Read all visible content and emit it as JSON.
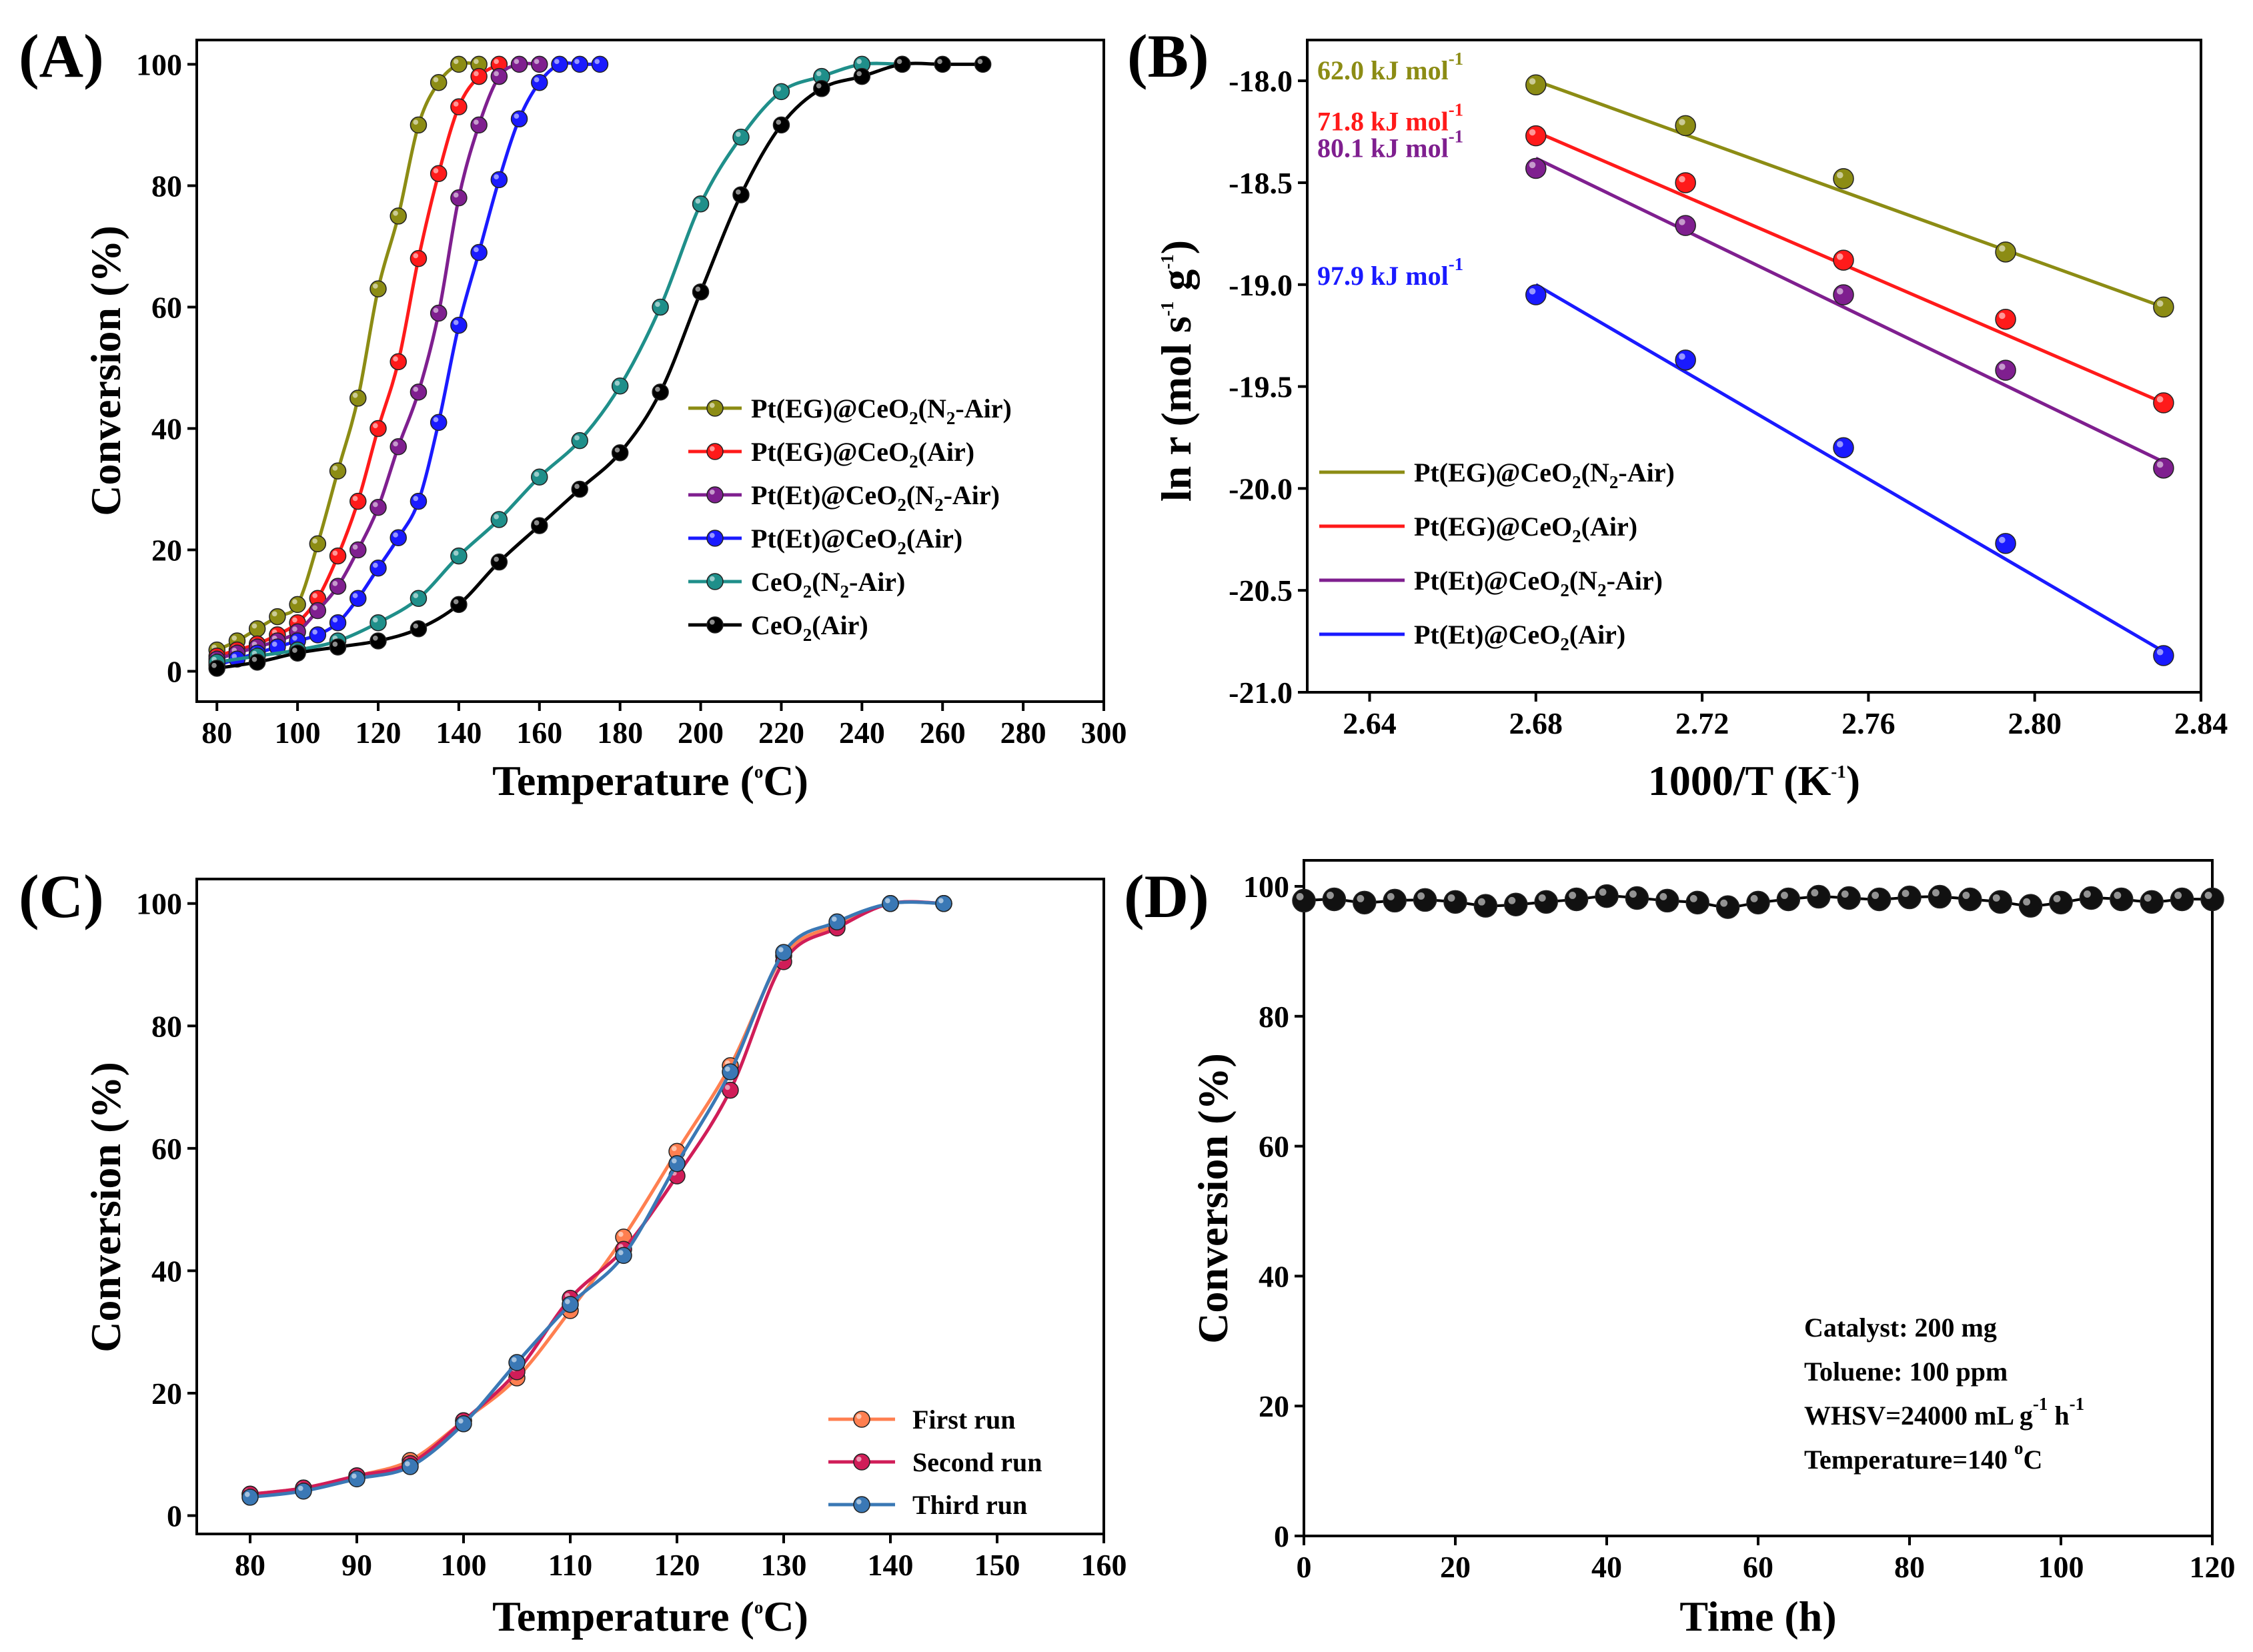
{
  "chart_data": [
    {
      "panel": "(A)",
      "type": "line",
      "xlabel": "Temperature",
      "xlabel_unit": "(oC)",
      "ylabel": "Conversion (%)",
      "xlim": [
        75,
        300
      ],
      "ylim": [
        -5,
        104
      ],
      "xticks": [
        80,
        100,
        120,
        140,
        160,
        180,
        200,
        220,
        240,
        260,
        280,
        300
      ],
      "yticks": [
        0,
        20,
        40,
        60,
        80,
        100
      ],
      "legend_position": "center-right",
      "series": [
        {
          "name": "Pt(EG)@CeO2(N2-Air)",
          "label_parts": [
            "Pt(EG)@CeO",
            "2",
            "(N",
            "2",
            "-Air)"
          ],
          "color": "#8c8c14",
          "x": [
            80,
            85,
            90,
            95,
            100,
            105,
            110,
            115,
            120,
            125,
            130,
            135,
            140,
            145
          ],
          "y": [
            3.5,
            5,
            7,
            9,
            11,
            21,
            33,
            45,
            63,
            75,
            90,
            97,
            100,
            100
          ]
        },
        {
          "name": "Pt(EG)@CeO2(Air)",
          "label_parts": [
            "Pt(EG)@CeO",
            "2",
            "(Air)"
          ],
          "color": "#ff1a1a",
          "x": [
            80,
            85,
            90,
            95,
            100,
            105,
            110,
            115,
            120,
            125,
            130,
            135,
            140,
            145,
            150
          ],
          "y": [
            2.5,
            3.5,
            4.5,
            6,
            8,
            12,
            19,
            28,
            40,
            51,
            68,
            82,
            93,
            98,
            100
          ]
        },
        {
          "name": "Pt(Et)@CeO2(N2-Air)",
          "label_parts": [
            "Pt(Et)@CeO",
            "2",
            "(N",
            "2",
            "-Air)"
          ],
          "color": "#7f1f8f",
          "x": [
            80,
            85,
            90,
            95,
            100,
            105,
            110,
            115,
            120,
            125,
            130,
            135,
            140,
            145,
            150,
            155,
            160
          ],
          "y": [
            2,
            3,
            4,
            5,
            6.5,
            10,
            14,
            20,
            27,
            37,
            46,
            59,
            78,
            90,
            98,
            100,
            100
          ]
        },
        {
          "name": "Pt(Et)@CeO2(Air)",
          "label_parts": [
            "Pt(Et)@CeO",
            "2",
            "(Air)"
          ],
          "color": "#1a1aff",
          "x": [
            80,
            85,
            90,
            95,
            100,
            105,
            110,
            115,
            120,
            125,
            130,
            135,
            140,
            145,
            150,
            155,
            160,
            165,
            170,
            175
          ],
          "y": [
            1,
            2,
            3,
            4,
            5,
            6,
            8,
            12,
            17,
            22,
            28,
            41,
            57,
            69,
            81,
            91,
            97,
            100,
            100,
            100
          ]
        },
        {
          "name": "CeO2(N2-Air)",
          "label_parts": [
            "CeO",
            "2",
            "(N",
            "2",
            "-Air)"
          ],
          "color": "#1f8f8a",
          "x": [
            80,
            90,
            100,
            110,
            120,
            130,
            140,
            150,
            160,
            170,
            180,
            190,
            200,
            210,
            220,
            230,
            240,
            250
          ],
          "y": [
            1.5,
            2.5,
            3.5,
            5,
            8,
            12,
            19,
            25,
            32,
            38,
            47,
            60,
            77,
            88,
            95.5,
            98,
            100,
            100
          ]
        },
        {
          "name": "CeO2(Air)",
          "label_parts": [
            "CeO",
            "2",
            "(Air)"
          ],
          "color": "#000000",
          "x": [
            80,
            90,
            100,
            110,
            120,
            130,
            140,
            150,
            160,
            170,
            180,
            190,
            200,
            210,
            220,
            230,
            240,
            250,
            260,
            270
          ],
          "y": [
            0.5,
            1.5,
            3,
            4,
            5,
            7,
            11,
            18,
            24,
            30,
            36,
            46,
            62.5,
            78.5,
            90,
            96,
            98,
            100,
            100,
            100
          ]
        }
      ]
    },
    {
      "panel": "(B)",
      "type": "scatter",
      "xlabel": "1000/T",
      "xlabel_unit": "(K-1)",
      "ylabel": "ln r (mol s-1 g-1)",
      "xlim": [
        2.625,
        2.84
      ],
      "ylim": [
        -21.0,
        -17.8
      ],
      "xticks": [
        2.64,
        2.68,
        2.72,
        2.76,
        2.8,
        2.84
      ],
      "yticks": [
        -18.0,
        -18.5,
        -19.0,
        -19.5,
        -20.0,
        -20.5,
        -21.0
      ],
      "legend_position": "bottom-left",
      "series": [
        {
          "name": "Pt(EG)@CeO2(N2-Air)",
          "label_parts": [
            "Pt(EG)@CeO",
            "2",
            "(N",
            "2",
            "-Air)"
          ],
          "color": "#8c8c14",
          "x": [
            2.68,
            2.716,
            2.754,
            2.793,
            2.831
          ],
          "y": [
            -18.02,
            -18.22,
            -18.48,
            -18.84,
            -19.11
          ],
          "fit": [
            [
              2.68,
              -18.0
            ],
            [
              2.831,
              -19.11
            ]
          ],
          "annotation": "62.0 kJ mol",
          "annotation_sup": "-1"
        },
        {
          "name": "Pt(EG)@CeO2(Air)",
          "label_parts": [
            "Pt(EG)@CeO",
            "2",
            "(Air)"
          ],
          "color": "#ff1a1a",
          "x": [
            2.68,
            2.716,
            2.754,
            2.793,
            2.831
          ],
          "y": [
            -18.27,
            -18.5,
            -18.88,
            -19.17,
            -19.58
          ],
          "fit": [
            [
              2.68,
              -18.25
            ],
            [
              2.831,
              -19.58
            ]
          ],
          "annotation": "71.8 kJ mol",
          "annotation_sup": "-1"
        },
        {
          "name": "Pt(Et)@CeO2(N2-Air)",
          "label_parts": [
            "Pt(Et)@CeO",
            "2",
            "(N",
            "2",
            "-Air)"
          ],
          "color": "#7f1f8f",
          "x": [
            2.68,
            2.716,
            2.754,
            2.793,
            2.831
          ],
          "y": [
            -18.43,
            -18.71,
            -19.05,
            -19.42,
            -19.9
          ],
          "fit": [
            [
              2.68,
              -18.38
            ],
            [
              2.831,
              -19.87
            ]
          ],
          "annotation": "80.1 kJ mol",
          "annotation_sup": "-1"
        },
        {
          "name": "Pt(Et)@CeO2(Air)",
          "label_parts": [
            "Pt(Et)@CeO",
            "2",
            "(Air)"
          ],
          "color": "#1a1aff",
          "x": [
            2.68,
            2.716,
            2.754,
            2.793,
            2.831
          ],
          "y": [
            -19.05,
            -19.37,
            -19.8,
            -20.27,
            -20.82
          ],
          "fit": [
            [
              2.68,
              -19.0
            ],
            [
              2.831,
              -20.8
            ]
          ],
          "annotation": "97.9 kJ mol",
          "annotation_sup": "-1"
        }
      ]
    },
    {
      "panel": "(C)",
      "type": "line",
      "xlabel": "Temperature",
      "xlabel_unit": "(oC)",
      "ylabel": "Conversion (%)",
      "xlim": [
        75,
        160
      ],
      "ylim": [
        -3,
        104
      ],
      "xticks": [
        80,
        90,
        100,
        110,
        120,
        130,
        140,
        150,
        160
      ],
      "yticks": [
        0,
        20,
        40,
        60,
        80,
        100
      ],
      "legend_position": "bottom-right",
      "series": [
        {
          "name": "First run",
          "color": "#ff7f50",
          "x": [
            80,
            85,
            90,
            95,
            100,
            105,
            110,
            115,
            120,
            125,
            130,
            135,
            140,
            145
          ],
          "y": [
            3.5,
            4.5,
            6.5,
            9,
            15.5,
            22.5,
            33.5,
            45.5,
            59.5,
            73.5,
            91.5,
            96.5,
            100,
            100
          ]
        },
        {
          "name": "Second run",
          "color": "#d01d58",
          "x": [
            80,
            85,
            90,
            95,
            100,
            105,
            110,
            115,
            120,
            125,
            130,
            135,
            140,
            145
          ],
          "y": [
            3.5,
            4.5,
            6.5,
            8.5,
            15.5,
            23.5,
            35.5,
            43.5,
            55.5,
            69.5,
            90.5,
            96,
            100,
            100
          ]
        },
        {
          "name": "Third run",
          "color": "#3a78b5",
          "x": [
            80,
            85,
            90,
            95,
            100,
            105,
            110,
            115,
            120,
            125,
            130,
            135,
            140,
            145
          ],
          "y": [
            3,
            4,
            6,
            8,
            15,
            25,
            34.5,
            42.5,
            57.5,
            72.5,
            92,
            97,
            100,
            100
          ]
        }
      ]
    },
    {
      "panel": "(D)",
      "type": "line",
      "xlabel": "Time (h)",
      "ylabel": "Conversion (%)",
      "xlim": [
        0,
        120
      ],
      "ylim": [
        0,
        104
      ],
      "xticks": [
        0,
        20,
        40,
        60,
        80,
        100,
        120
      ],
      "yticks": [
        0,
        20,
        40,
        60,
        80,
        100
      ],
      "series": [
        {
          "name": "Conversion",
          "color": "#000000",
          "x": [
            0,
            4,
            8,
            12,
            16,
            20,
            24,
            28,
            32,
            36,
            40,
            44,
            48,
            52,
            56,
            60,
            64,
            68,
            72,
            76,
            80,
            84,
            88,
            92,
            96,
            100,
            104,
            108,
            112,
            116,
            120
          ],
          "y": [
            97.8,
            98,
            97.5,
            97.8,
            97.9,
            97.6,
            97,
            97.2,
            97.6,
            98,
            98.5,
            98.2,
            97.8,
            97.5,
            96.8,
            97.5,
            98,
            98.4,
            98.2,
            98,
            98.3,
            98.4,
            98,
            97.6,
            97,
            97.5,
            98.2,
            98,
            97.6,
            98,
            98
          ]
        }
      ],
      "info_lines": [
        {
          "text": "Catalyst: 200 mg"
        },
        {
          "text": "Toluene: 100 ppm"
        },
        {
          "text": "WHSV=24000 mL g",
          "sup1": "-1",
          "mid": " h",
          "sup2": "-1"
        },
        {
          "text": "Temperature=140 ",
          "sup1": "o",
          "mid": "C"
        }
      ]
    }
  ]
}
